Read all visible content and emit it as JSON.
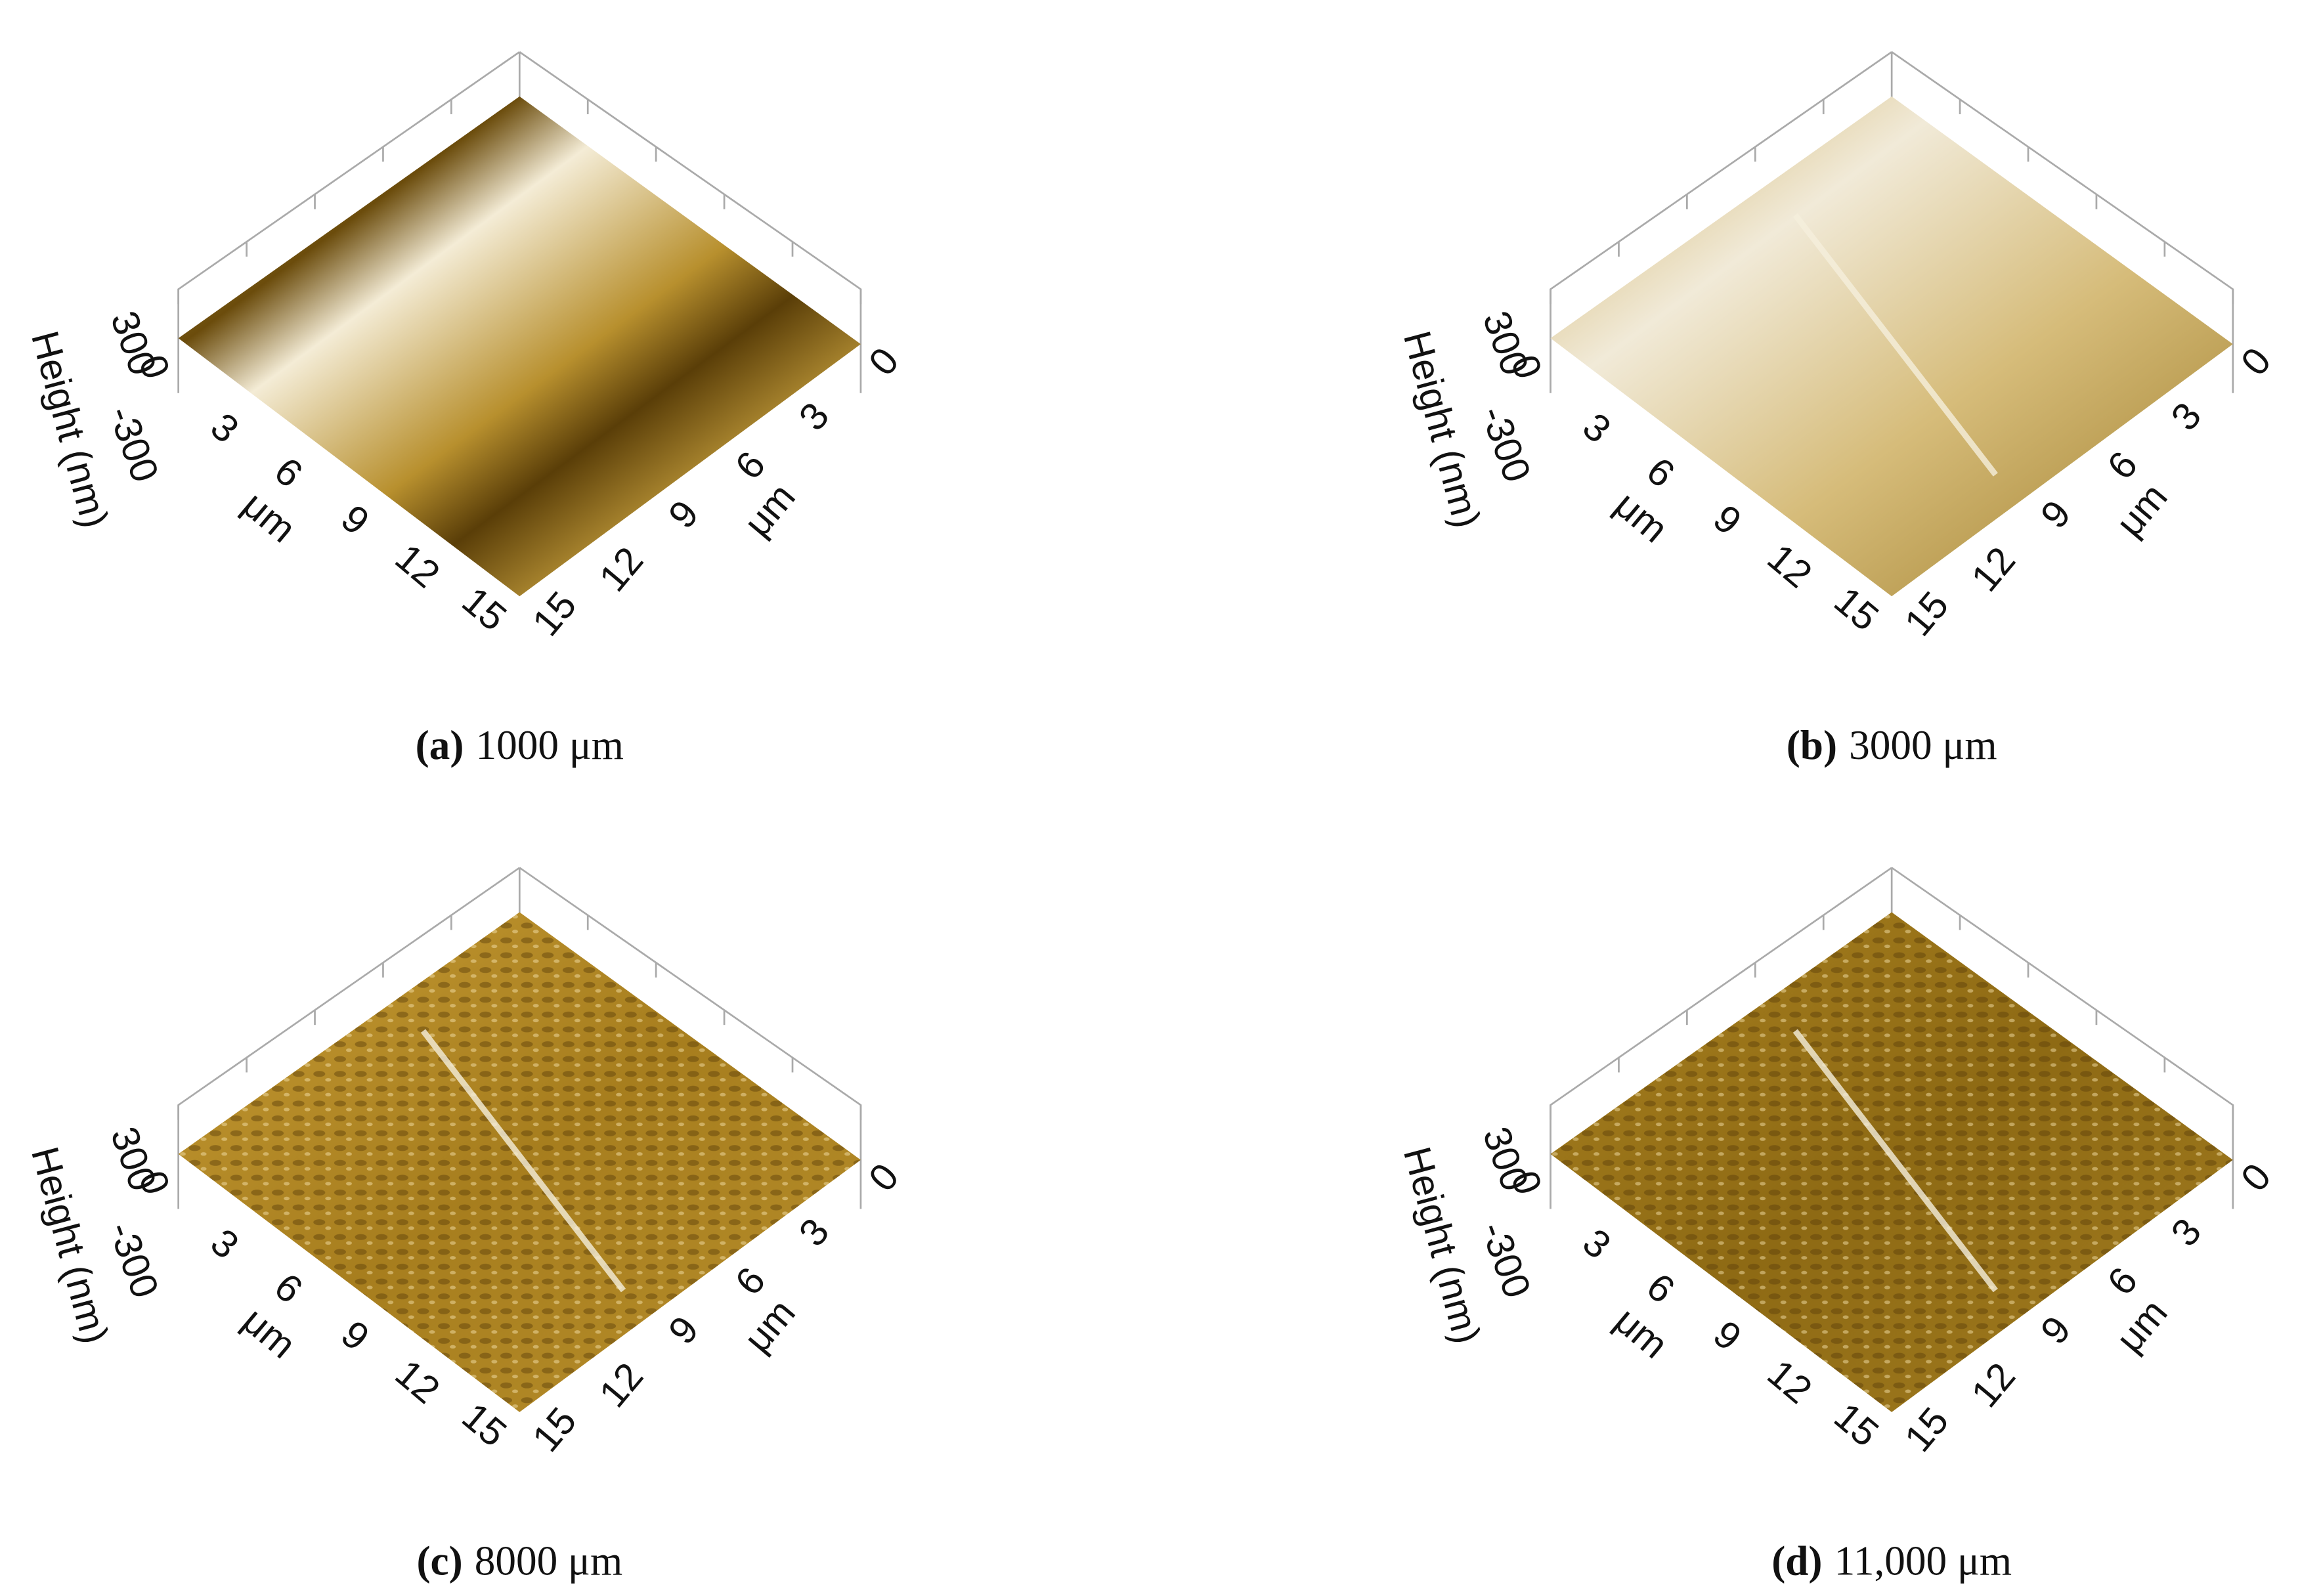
{
  "panels": [
    {
      "label": "(a)",
      "caption": "1000 μm",
      "z_title": "Height (nm)",
      "z_ticks": [
        "300",
        "0",
        "-300"
      ],
      "left_ticks": [
        "3",
        "6",
        "9",
        "12",
        "15"
      ],
      "left_title": "μm",
      "right_ticks": [
        "0",
        "3",
        "6",
        "9",
        "12",
        "15"
      ],
      "right_title": "μm"
    },
    {
      "label": "(b)",
      "caption": "3000 μm",
      "z_title": "Height (nm)",
      "z_ticks": [
        "300",
        "0",
        "-300"
      ],
      "left_ticks": [
        "3",
        "6",
        "9",
        "12",
        "15"
      ],
      "left_title": "μm",
      "right_ticks": [
        "0",
        "3",
        "6",
        "9",
        "12",
        "15"
      ],
      "right_title": "μm"
    },
    {
      "label": "(c)",
      "caption": "8000 μm",
      "z_title": "Height (nm)",
      "z_ticks": [
        "300",
        "0",
        "-300"
      ],
      "left_ticks": [
        "3",
        "6",
        "9",
        "12",
        "15"
      ],
      "left_title": "μm",
      "right_ticks": [
        "0",
        "3",
        "6",
        "9",
        "12",
        "15"
      ],
      "right_title": "μm"
    },
    {
      "label": "(d)",
      "caption": "11,000 μm",
      "z_title": "Height (nm)",
      "z_ticks": [
        "300",
        "0",
        "-300"
      ],
      "left_ticks": [
        "3",
        "6",
        "9",
        "12",
        "15"
      ],
      "left_title": "μm",
      "right_ticks": [
        "0",
        "3",
        "6",
        "9",
        "12",
        "15"
      ],
      "right_title": "μm"
    }
  ]
}
